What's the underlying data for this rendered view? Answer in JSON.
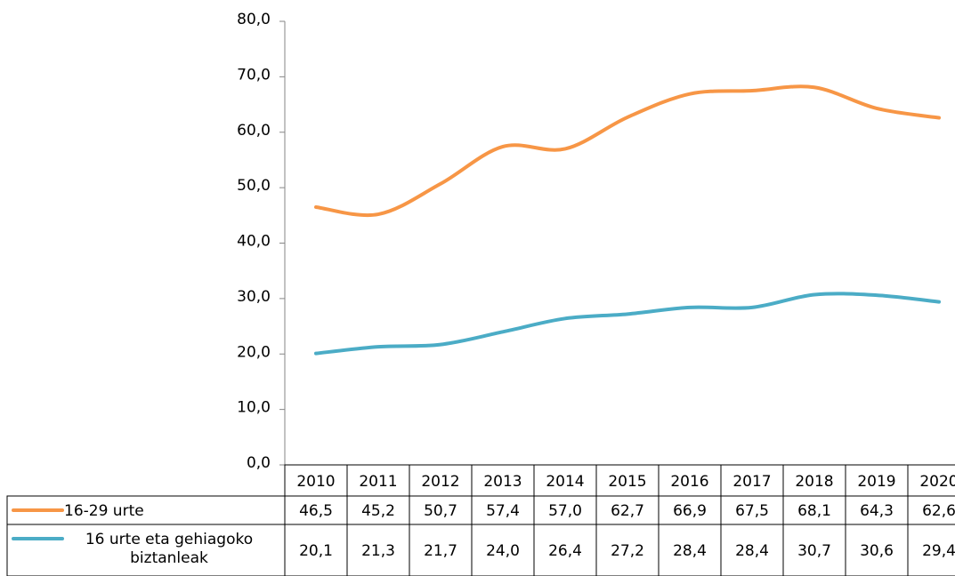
{
  "chart_data": {
    "type": "line",
    "categories": [
      "2010",
      "2011",
      "2012",
      "2013",
      "2014",
      "2015",
      "2016",
      "2017",
      "2018",
      "2019",
      "2020"
    ],
    "series": [
      {
        "name": "16-29 urte",
        "color": "#f79646",
        "values": [
          46.5,
          45.2,
          50.7,
          57.4,
          57.0,
          62.7,
          66.9,
          67.5,
          68.1,
          64.3,
          62.6
        ],
        "value_labels": [
          "46,5",
          "45,2",
          "50,7",
          "57,4",
          "57,0",
          "62,7",
          "66,9",
          "67,5",
          "68,1",
          "64,3",
          "62,6"
        ]
      },
      {
        "name": "16 urte eta gehiagoko biztanleak",
        "color": "#4bacc6",
        "values": [
          20.1,
          21.3,
          21.7,
          24.0,
          26.4,
          27.2,
          28.4,
          28.4,
          30.7,
          30.6,
          29.4
        ],
        "value_labels": [
          "20,1",
          "21,3",
          "21,7",
          "24,0",
          "26,4",
          "27,2",
          "28,4",
          "28,4",
          "30,7",
          "30,6",
          "29,4"
        ]
      }
    ],
    "ylim": [
      0,
      80
    ],
    "yticks": [
      {
        "value": 0,
        "label": "0,0"
      },
      {
        "value": 10,
        "label": "10,0"
      },
      {
        "value": 20,
        "label": "20,0"
      },
      {
        "value": 30,
        "label": "30,0"
      },
      {
        "value": 40,
        "label": "40,0"
      },
      {
        "value": 50,
        "label": "50,0"
      },
      {
        "value": 60,
        "label": "60,0"
      },
      {
        "value": 70,
        "label": "70,0"
      },
      {
        "value": 80,
        "label": "80,0"
      }
    ]
  }
}
